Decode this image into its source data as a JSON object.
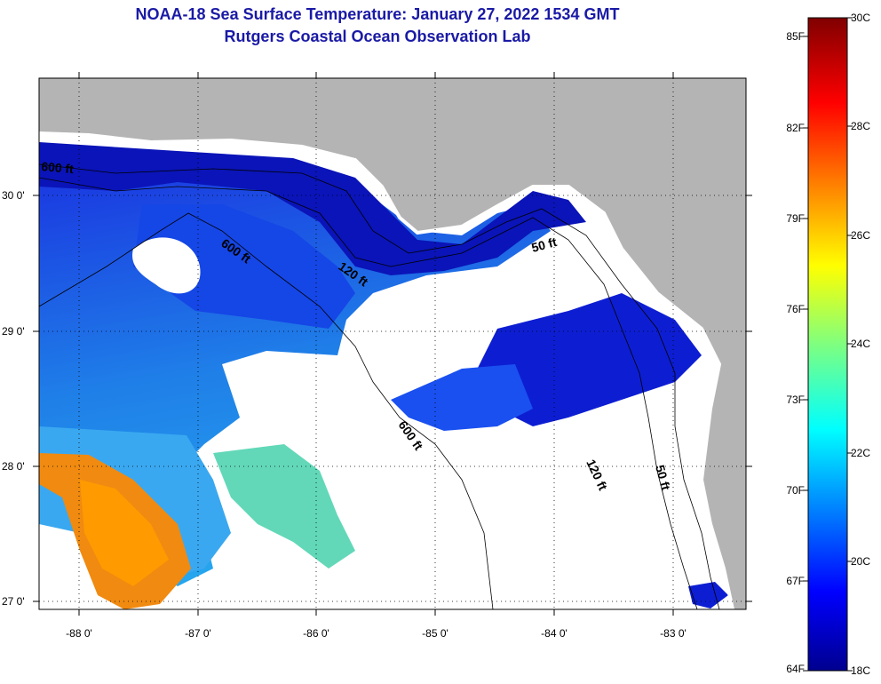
{
  "title": {
    "line1": "NOAA-18 Sea Surface Temperature:  January 27, 2022 1534 GMT",
    "line2": "Rutgers Coastal Ocean Observation Lab"
  },
  "map": {
    "lon_ticks": [
      "-88 0'",
      "-87 0'",
      "-86 0'",
      "-85 0'",
      "-84 0'",
      "-83 0'"
    ],
    "lat_ticks": [
      "30 0'",
      "29 0'",
      "28 0'",
      "27 0'"
    ],
    "contour_labels": [
      "600 ft",
      "120 ft",
      "50 ft",
      "600 ft",
      "120 ft",
      "50 ft",
      "600 ft"
    ],
    "colors": {
      "land": "#b4b4b4",
      "cloud": "#ffffff",
      "grid": "#000000"
    }
  },
  "colorbar": {
    "fahrenheit_labels": [
      "85F",
      "82F",
      "79F",
      "76F",
      "73F",
      "70F",
      "67F",
      "64F"
    ],
    "celsius_labels": [
      "30C",
      "28C",
      "26C",
      "24C",
      "22C",
      "20C",
      "18C"
    ]
  }
}
